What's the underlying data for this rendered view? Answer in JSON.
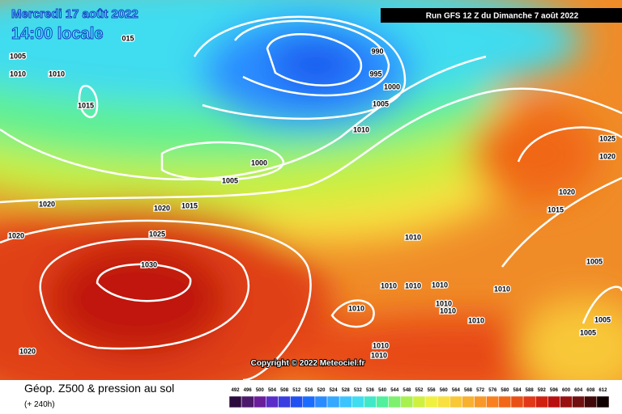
{
  "header": {
    "date": "Mercredi 17 août 2022",
    "time": "14:00 locale",
    "run": "Run GFS 12 Z du Dimanche 7 août 2022"
  },
  "isobar_labels": [
    "1010",
    "015",
    "1005",
    "1010",
    "1015",
    "990",
    "995",
    "1000",
    "1005",
    "1010",
    "1000",
    "1005",
    "1020",
    "1015",
    "1020",
    "1025",
    "1020",
    "1030",
    "1010",
    "1010",
    "1010",
    "1010",
    "1010",
    "1010",
    "1010",
    "1010",
    "1010",
    "1010",
    "1020",
    "1025",
    "1020",
    "1015",
    "1005",
    "1005",
    "1005",
    "1020",
    "1010"
  ],
  "copyright": "Copyright © 2022 Meteociel.fr",
  "footer": {
    "title": "Géop. Z500 & pression au sol",
    "subtitle": "(+ 240h)"
  },
  "legend": {
    "ticks": [
      492,
      496,
      500,
      504,
      508,
      512,
      516,
      520,
      524,
      528,
      532,
      536,
      540,
      544,
      548,
      552,
      556,
      560,
      564,
      568,
      572,
      576,
      580,
      584,
      588,
      592,
      596,
      600,
      604,
      608,
      612
    ],
    "colors": [
      "#2b0a3d",
      "#4b1a6b",
      "#6a1e9a",
      "#5a2dc8",
      "#3a3ee0",
      "#2050f0",
      "#1a6cff",
      "#2b8cff",
      "#35a8ff",
      "#3dc4ff",
      "#40dcf0",
      "#40e8c8",
      "#50f09c",
      "#7ef070",
      "#a8f050",
      "#d0f040",
      "#f0f040",
      "#f8e040",
      "#f8c838",
      "#f8b030",
      "#f89828",
      "#f88020",
      "#f06818",
      "#e85018",
      "#e03818",
      "#d02010",
      "#b81010",
      "#981010",
      "#701010",
      "#400808",
      "#100000"
    ]
  }
}
